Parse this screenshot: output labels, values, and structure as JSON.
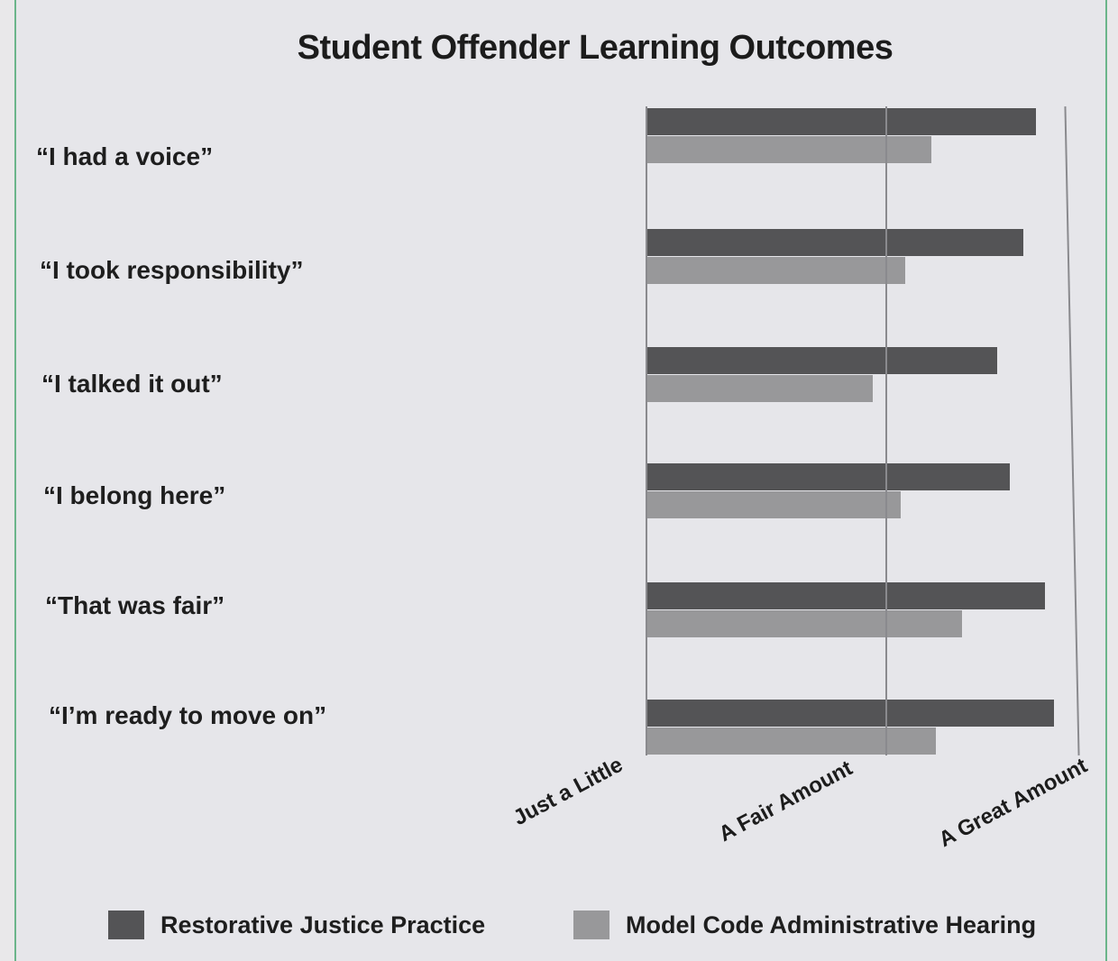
{
  "chart_data": {
    "type": "bar",
    "orientation": "horizontal",
    "title": "Student Offender Learning Outcomes",
    "categories": [
      "“I had a voice”",
      "“I took responsibility”",
      "“I talked it out”",
      "“I belong here”",
      "“That was fair”",
      "“I’m ready to move on”"
    ],
    "series": [
      {
        "name": "Restorative Justice Practice",
        "color": "#545456",
        "values": [
          2.79,
          2.73,
          2.61,
          2.67,
          2.83,
          2.87
        ]
      },
      {
        "name": "Model Code Administrative Hearing",
        "color": "#98989a",
        "values": [
          2.31,
          2.19,
          2.04,
          2.17,
          2.45,
          2.33
        ]
      }
    ],
    "xaxis_ticks": [
      {
        "value": 1,
        "label": "Just a Little"
      },
      {
        "value": 2,
        "label": "A Fair Amount"
      },
      {
        "value": 3,
        "label": "A Great Amount"
      }
    ],
    "xlim": [
      1,
      3
    ],
    "xlabel": "",
    "ylabel": "",
    "grid": true,
    "legend_position": "bottom"
  },
  "legend": {
    "rj": "Restorative Justice Practice",
    "mc": "Model Code Administrative Hearing"
  }
}
